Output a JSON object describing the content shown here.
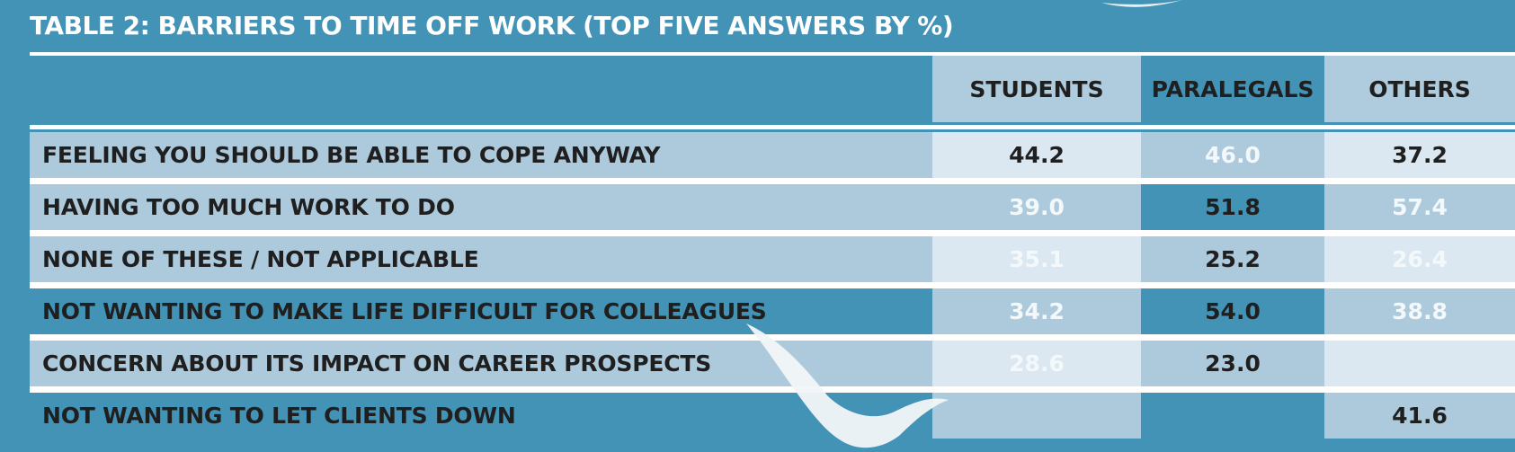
{
  "title": "TABLE 2: BARRIERS TO TIME OFF WORK (TOP FIVE ANSWERS BY %)",
  "chart_data": {
    "type": "table",
    "title": "TABLE 2: BARRIERS TO TIME OFF WORK (TOP FIVE ANSWERS BY %)",
    "columns": [
      "STUDENTS",
      "PARALEGALS",
      "OTHERS"
    ],
    "rows": [
      {
        "label": "FEELING YOU SHOULD BE ABLE TO COPE ANYWAY",
        "values": [
          "44.2",
          "46.0",
          "37.2"
        ]
      },
      {
        "label": "HAVING TOO MUCH WORK TO DO",
        "values": [
          "39.0",
          "51.8",
          "57.4"
        ]
      },
      {
        "label": "NONE OF THESE / NOT APPLICABLE",
        "values": [
          "35.1",
          "25.2",
          "26.4"
        ]
      },
      {
        "label": "NOT WANTING TO MAKE LIFE DIFFICULT FOR COLLEAGUES",
        "values": [
          "34.2",
          "54.0",
          "38.8"
        ]
      },
      {
        "label": "CONCERN ABOUT ITS IMPACT ON CAREER PROSPECTS",
        "values": [
          "28.6",
          "23.0",
          ""
        ]
      },
      {
        "label": "NOT WANTING TO LET CLIENTS DOWN",
        "values": [
          "",
          "",
          "41.6"
        ]
      }
    ]
  },
  "colors": {
    "background": "#4393b7",
    "row_light": "#adcadd",
    "students_header": "#afcbde",
    "paralegals_header": "#4393b7",
    "others_header": "#afcbde",
    "cell_lightest": "#dbe8f1",
    "cell_light": "#adcadd",
    "cell_blue": "#4393b7",
    "text_dark": "#1f1f1f",
    "text_light": "#f3f8fb",
    "rule": "#ffffff"
  }
}
